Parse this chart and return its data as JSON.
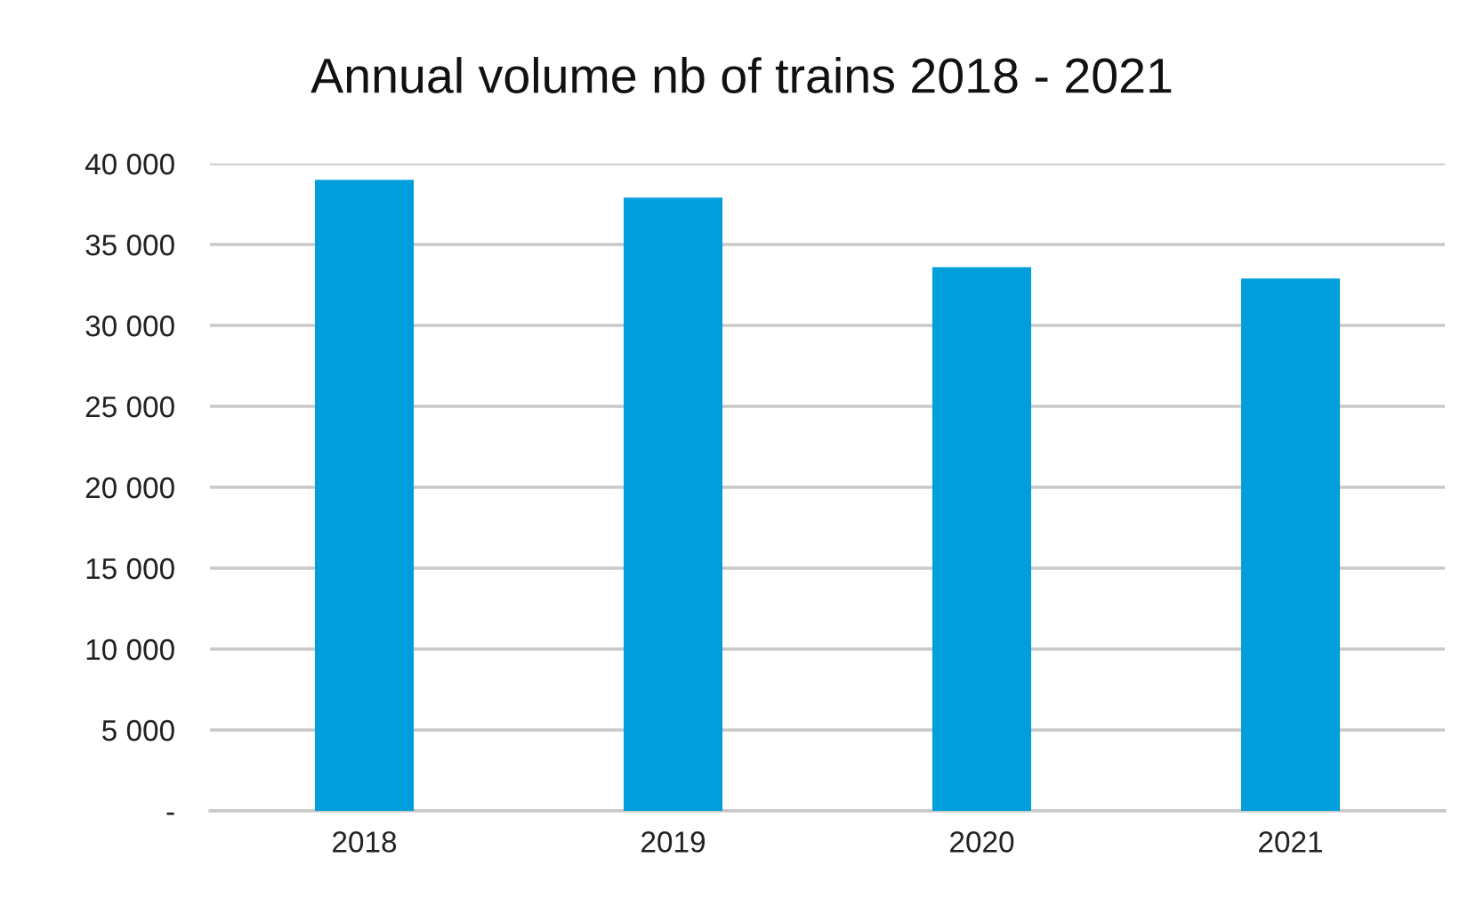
{
  "chart_data": {
    "type": "bar",
    "title": "Annual volume nb of trains 2018 - 2021",
    "categories": [
      "2018",
      "2019",
      "2020",
      "2021"
    ],
    "values": [
      39000,
      37900,
      33600,
      32900
    ],
    "color": "#009edb",
    "ylim": [
      0,
      40000
    ],
    "yticks": [
      {
        "value": 0,
        "label": "-"
      },
      {
        "value": 5000,
        "label": "5 000"
      },
      {
        "value": 10000,
        "label": "10 000"
      },
      {
        "value": 15000,
        "label": "15 000"
      },
      {
        "value": 20000,
        "label": "20 000"
      },
      {
        "value": 25000,
        "label": "25 000"
      },
      {
        "value": 30000,
        "label": "30 000"
      },
      {
        "value": 35000,
        "label": "35 000"
      },
      {
        "value": 40000,
        "label": "40 000"
      }
    ],
    "grid": "y"
  }
}
